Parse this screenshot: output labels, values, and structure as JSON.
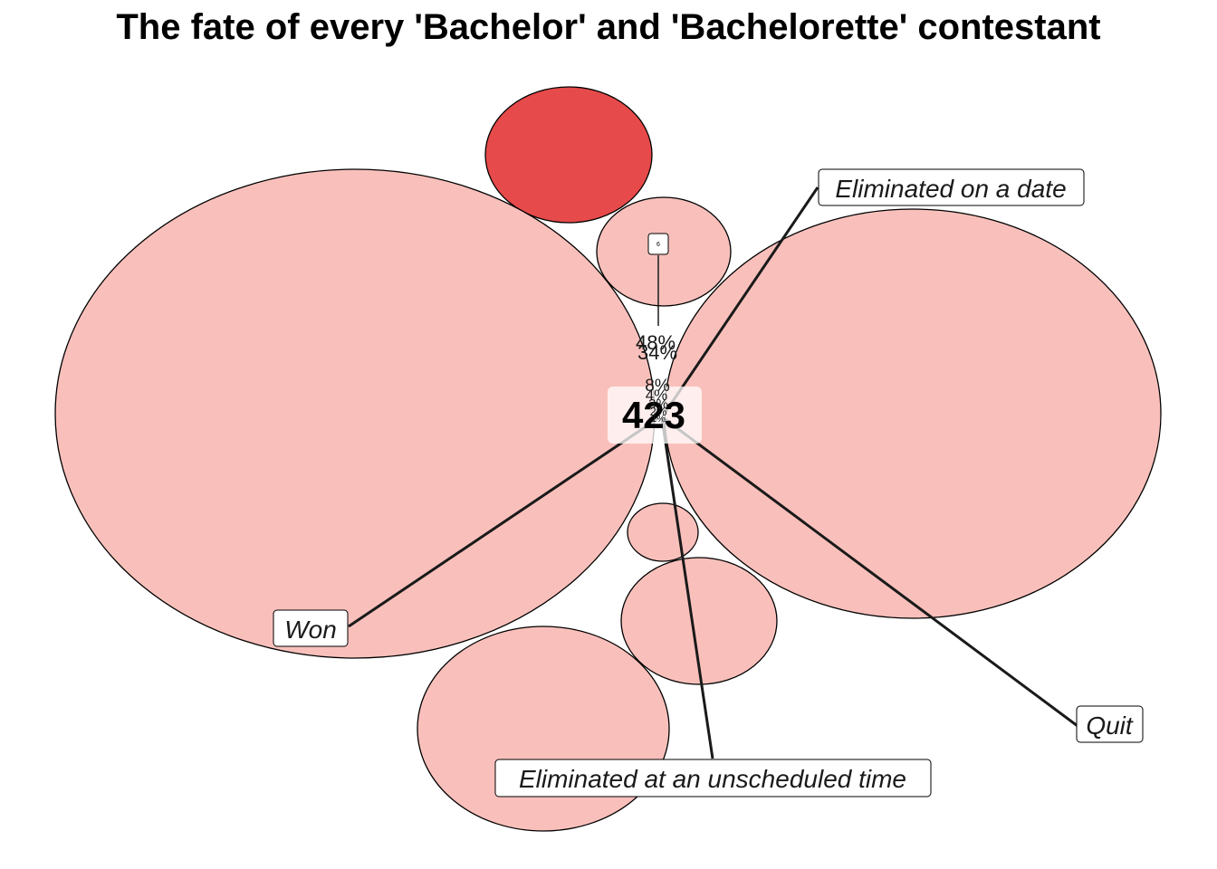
{
  "chart_data": {
    "type": "bubble",
    "title": "The fate of every 'Bachelor' and 'Bachelorette' contestant",
    "center_label": "423",
    "small_box_label": "6",
    "percent_labels": [
      "48%",
      "34%",
      "8%",
      "4%",
      "3%",
      "2%",
      "1%"
    ],
    "categories": [
      "Won",
      "Eliminated on a date",
      "Quit",
      "Eliminated at an unscheduled time"
    ],
    "colors": {
      "bubble": "#f9c0bb",
      "highlight": "#e64a4a",
      "outline": "#000000",
      "leader": "#1a1a1a"
    }
  }
}
